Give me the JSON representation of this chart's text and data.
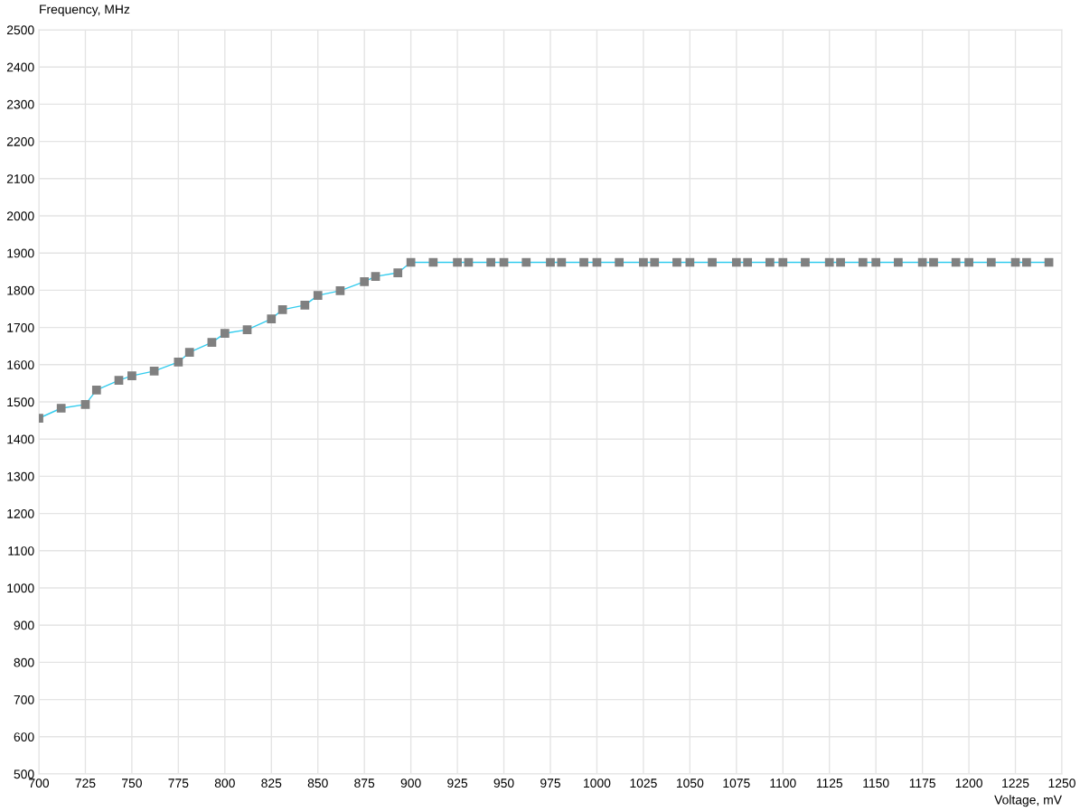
{
  "chart_data": {
    "type": "line",
    "xlabel": "Voltage, mV",
    "ylabel": "Frequency, MHz",
    "x": [
      700,
      712,
      725,
      731,
      743,
      750,
      762,
      775,
      781,
      793,
      800,
      812,
      825,
      831,
      843,
      850,
      862,
      875,
      881,
      893,
      900,
      912,
      925,
      931,
      943,
      950,
      962,
      975,
      981,
      993,
      1000,
      1012,
      1025,
      1031,
      1043,
      1050,
      1062,
      1075,
      1081,
      1093,
      1100,
      1112,
      1125,
      1131,
      1143,
      1150,
      1162,
      1175,
      1181,
      1193,
      1200,
      1212,
      1225,
      1231,
      1243
    ],
    "series": [
      {
        "color": "#33ccee",
        "values": [
          1456,
          1483,
          1493,
          1532,
          1558,
          1570,
          1583,
          1607,
          1633,
          1660,
          1684,
          1694,
          1723,
          1748,
          1760,
          1786,
          1799,
          1823,
          1837,
          1847,
          1875,
          1875,
          1875,
          1875,
          1875,
          1875,
          1875,
          1875,
          1875,
          1875,
          1875,
          1875,
          1875,
          1875,
          1875,
          1875,
          1875,
          1875,
          1875,
          1875,
          1875,
          1875,
          1875,
          1875,
          1875,
          1875,
          1875,
          1875,
          1875,
          1875,
          1875,
          1875,
          1875,
          1875,
          1875
        ]
      }
    ],
    "xlim": [
      700,
      1250
    ],
    "xticks": [
      700,
      725,
      750,
      775,
      800,
      825,
      850,
      875,
      900,
      925,
      950,
      975,
      1000,
      1025,
      1050,
      1075,
      1100,
      1125,
      1150,
      1175,
      1200,
      1225,
      1250
    ],
    "ylim": [
      500,
      2500
    ],
    "yticks": [
      500,
      600,
      700,
      800,
      900,
      1000,
      1100,
      1200,
      1300,
      1400,
      1500,
      1600,
      1700,
      1800,
      1900,
      2000,
      2100,
      2200,
      2300,
      2400,
      2500
    ],
    "grid": true,
    "marker": "square",
    "line_style": "solid",
    "legend": false
  }
}
